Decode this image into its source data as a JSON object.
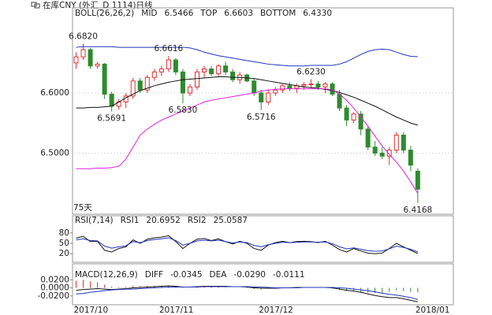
{
  "title": "在库CNY (外汇_D 1114)日线",
  "chart_data": [
    {
      "type": "candlestick",
      "indicator": "BOLL(26,26,2)",
      "note": "75天",
      "up_color": "#e03030",
      "down_color": "#2e8b2e",
      "grid": true,
      "xlim": [
        -0.5,
        53
      ],
      "ylim": [
        6.401,
        6.718
      ],
      "yticks": [
        {
          "value": 6.6,
          "label": "6.6000"
        },
        {
          "value": 6.5,
          "label": "6.5000"
        }
      ],
      "open": [
        6.65,
        6.66,
        6.672,
        6.645,
        6.648,
        6.598,
        6.578,
        6.585,
        6.595,
        6.62,
        6.605,
        6.626,
        6.635,
        6.64,
        6.655,
        6.635,
        6.6,
        6.61,
        6.635,
        6.64,
        6.632,
        6.645,
        6.635,
        6.622,
        6.63,
        6.62,
        6.6,
        6.585,
        6.6,
        6.605,
        6.612,
        6.608,
        6.612,
        6.614,
        6.615,
        6.61,
        6.615,
        6.598,
        6.575,
        6.555,
        6.565,
        6.54,
        6.51,
        6.5,
        6.495,
        6.505,
        6.53,
        6.505,
        6.47
      ],
      "high": [
        6.668,
        6.682,
        6.675,
        6.652,
        6.65,
        6.602,
        6.59,
        6.6,
        6.625,
        6.625,
        6.63,
        6.64,
        6.645,
        6.6616,
        6.658,
        6.64,
        6.615,
        6.64,
        6.645,
        6.645,
        6.648,
        6.652,
        6.64,
        6.635,
        6.632,
        6.625,
        6.605,
        6.605,
        6.61,
        6.615,
        6.618,
        6.616,
        6.618,
        6.623,
        6.62,
        6.618,
        6.618,
        6.605,
        6.58,
        6.568,
        6.57,
        6.545,
        6.52,
        6.51,
        6.51,
        6.535,
        6.535,
        6.512,
        6.475
      ],
      "low": [
        6.64,
        6.655,
        6.64,
        6.64,
        6.59,
        6.5691,
        6.572,
        6.575,
        6.59,
        6.6,
        6.6,
        6.62,
        6.628,
        6.635,
        6.63,
        6.583,
        6.595,
        6.605,
        6.625,
        6.628,
        6.628,
        6.63,
        6.618,
        6.615,
        6.618,
        6.595,
        6.5716,
        6.58,
        6.595,
        6.6,
        6.603,
        6.6,
        6.605,
        6.608,
        6.605,
        6.6,
        6.595,
        6.57,
        6.545,
        6.55,
        6.53,
        6.505,
        6.495,
        6.49,
        6.48,
        6.5,
        6.5,
        6.47,
        6.4168
      ],
      "close": [
        6.66,
        6.672,
        6.645,
        6.648,
        6.598,
        6.578,
        6.585,
        6.595,
        6.62,
        6.605,
        6.626,
        6.635,
        6.64,
        6.655,
        6.635,
        6.6,
        6.61,
        6.635,
        6.64,
        6.632,
        6.645,
        6.635,
        6.622,
        6.63,
        6.62,
        6.6,
        6.585,
        6.6,
        6.605,
        6.612,
        6.608,
        6.612,
        6.614,
        6.615,
        6.61,
        6.615,
        6.598,
        6.575,
        6.555,
        6.565,
        6.54,
        6.51,
        6.5,
        6.495,
        6.505,
        6.53,
        6.505,
        6.48,
        6.44
      ],
      "annotations": [
        {
          "value": 6.682,
          "label": "6.6820"
        },
        {
          "value": 6.6616,
          "label": "6.6616"
        },
        {
          "value": 6.5691,
          "label": "6.5691"
        },
        {
          "value": 6.583,
          "label": "6.5830"
        },
        {
          "value": 6.5716,
          "label": "6.5716"
        },
        {
          "value": 6.623,
          "label": "6.6230"
        },
        {
          "value": 6.4168,
          "label": "6.4168"
        }
      ],
      "readouts": [
        "6.5466",
        "6.6603",
        "6.4330"
      ],
      "series": [
        {
          "name": "MID",
          "color": "#111111",
          "values": [
            6.575,
            6.575,
            6.576,
            6.576,
            6.577,
            6.578,
            6.585,
            6.592,
            6.598,
            6.604,
            6.608,
            6.612,
            6.615,
            6.618,
            6.62,
            6.622,
            6.623,
            6.624,
            6.625,
            6.626,
            6.627,
            6.627,
            6.626,
            6.626,
            6.625,
            6.624,
            6.622,
            6.62,
            6.618,
            6.616,
            6.614,
            6.612,
            6.61,
            6.609,
            6.608,
            6.606,
            6.604,
            6.601,
            6.597,
            6.593,
            6.588,
            6.583,
            6.578,
            6.572,
            6.566,
            6.56,
            6.555,
            6.55,
            6.5466
          ]
        },
        {
          "name": "TOP",
          "color": "#2233bb",
          "values": [
            6.676,
            6.677,
            6.677,
            6.677,
            6.677,
            6.677,
            6.676,
            6.676,
            6.676,
            6.676,
            6.676,
            6.676,
            6.676,
            6.676,
            6.676,
            6.676,
            6.675,
            6.672,
            6.668,
            6.665,
            6.662,
            6.66,
            6.658,
            6.656,
            6.654,
            6.652,
            6.65,
            6.648,
            6.647,
            6.646,
            6.645,
            6.645,
            6.645,
            6.646,
            6.646,
            6.646,
            6.646,
            6.648,
            6.652,
            6.658,
            6.664,
            6.669,
            6.672,
            6.673,
            6.672,
            6.668,
            6.664,
            6.661,
            6.6603
          ]
        },
        {
          "name": "BOTTOM",
          "color": "#dd22dd",
          "values": [
            6.474,
            6.474,
            6.474,
            6.475,
            6.475,
            6.476,
            6.478,
            6.49,
            6.51,
            6.53,
            6.54,
            6.548,
            6.555,
            6.56,
            6.565,
            6.57,
            6.575,
            6.58,
            6.585,
            6.588,
            6.59,
            6.592,
            6.594,
            6.596,
            6.598,
            6.6,
            6.603,
            6.605,
            6.606,
            6.607,
            6.607,
            6.607,
            6.607,
            6.607,
            6.607,
            6.607,
            6.605,
            6.598,
            6.588,
            6.575,
            6.56,
            6.545,
            6.528,
            6.512,
            6.498,
            6.485,
            6.47,
            6.452,
            6.433
          ]
        }
      ]
    },
    {
      "type": "line",
      "indicator": "RSI(7,14)",
      "ylim": [
        0,
        100
      ],
      "yticks": [
        80,
        50,
        20
      ],
      "readouts": [
        "20.6952",
        "25.0587"
      ],
      "series": [
        {
          "name": "RSI1",
          "color": "#111111",
          "values": [
            65,
            70,
            55,
            56,
            30,
            25,
            35,
            40,
            60,
            50,
            62,
            66,
            68,
            72,
            55,
            35,
            50,
            62,
            64,
            58,
            63,
            55,
            48,
            56,
            50,
            35,
            30,
            45,
            52,
            56,
            52,
            55,
            56,
            55,
            52,
            56,
            45,
            32,
            25,
            35,
            28,
            22,
            20,
            22,
            35,
            50,
            40,
            30,
            20.6952
          ]
        },
        {
          "name": "RSI2",
          "color": "#2233bb",
          "values": [
            60,
            63,
            58,
            57,
            42,
            36,
            40,
            43,
            55,
            52,
            58,
            61,
            63,
            66,
            58,
            45,
            50,
            57,
            59,
            57,
            59,
            55,
            51,
            54,
            52,
            44,
            40,
            46,
            50,
            53,
            52,
            53,
            54,
            54,
            53,
            54,
            49,
            40,
            34,
            37,
            33,
            29,
            27,
            28,
            34,
            42,
            38,
            33,
            25.0587
          ]
        }
      ]
    },
    {
      "type": "macd",
      "indicator": "MACD(12,26,9)",
      "ylim": [
        -0.038,
        0.044
      ],
      "yticks": [
        {
          "value": 0.02,
          "label": "0.0200"
        },
        {
          "value": 0,
          "label": "0.0000"
        },
        {
          "value": -0.02,
          "label": "-0.0200"
        }
      ],
      "readouts": [
        "-0.0345",
        "-0.0290"
      ],
      "bar_readout": "-0.0111",
      "up_color": "#e03030",
      "down_color": "#2e8b2e",
      "bars": [
        0.018,
        0.02,
        0.016,
        0.014,
        0.008,
        0.003,
        0.002,
        0.003,
        0.005,
        0.004,
        0.005,
        0.005,
        0.005,
        0.006,
        0.003,
        -0.001,
        0.0,
        0.002,
        0.003,
        0.002,
        0.002,
        0.001,
        0.0,
        0.0,
        -0.001,
        -0.003,
        -0.004,
        -0.002,
        -0.001,
        0.0,
        0.0,
        0.001,
        0.001,
        0.001,
        0.0,
        0.001,
        -0.002,
        -0.005,
        -0.008,
        -0.008,
        -0.01,
        -0.012,
        -0.013,
        -0.012,
        -0.01,
        -0.006,
        -0.008,
        -0.01,
        -0.0111
      ],
      "series": [
        {
          "name": "DIFF",
          "color": "#111111",
          "values": [
            -0.006,
            -0.004,
            -0.003,
            -0.002,
            -0.003,
            -0.004,
            -0.003,
            -0.002,
            0.0,
            0.001,
            0.002,
            0.003,
            0.004,
            0.005,
            0.004,
            0.002,
            0.002,
            0.003,
            0.004,
            0.004,
            0.004,
            0.004,
            0.003,
            0.003,
            0.002,
            0.0,
            -0.001,
            -0.001,
            -0.001,
            0.0,
            0.0,
            0.001,
            0.001,
            0.001,
            0.001,
            0.001,
            0.0,
            -0.003,
            -0.006,
            -0.008,
            -0.011,
            -0.015,
            -0.019,
            -0.022,
            -0.024,
            -0.024,
            -0.027,
            -0.031,
            -0.0345
          ]
        },
        {
          "name": "DEA",
          "color": "#2233bb",
          "values": [
            -0.015,
            -0.014,
            -0.011,
            -0.009,
            -0.007,
            -0.005,
            -0.004,
            -0.003,
            -0.003,
            -0.002,
            -0.001,
            0.0,
            0.001,
            0.002,
            0.002,
            0.002,
            0.002,
            0.002,
            0.003,
            0.003,
            0.003,
            0.003,
            0.003,
            0.003,
            0.003,
            0.002,
            0.002,
            0.001,
            0.0,
            0.0,
            0.0,
            0.0,
            0.001,
            0.001,
            0.001,
            0.001,
            0.001,
            0.0,
            -0.001,
            -0.003,
            -0.005,
            -0.007,
            -0.01,
            -0.013,
            -0.016,
            -0.018,
            -0.021,
            -0.024,
            -0.029
          ]
        }
      ],
      "xticks": [
        {
          "value": 0,
          "label": "2017/10"
        },
        {
          "value": 12,
          "label": "2017/11"
        },
        {
          "value": 26,
          "label": "2017/12"
        },
        {
          "value": 48,
          "label": "2018/01"
        }
      ]
    }
  ]
}
